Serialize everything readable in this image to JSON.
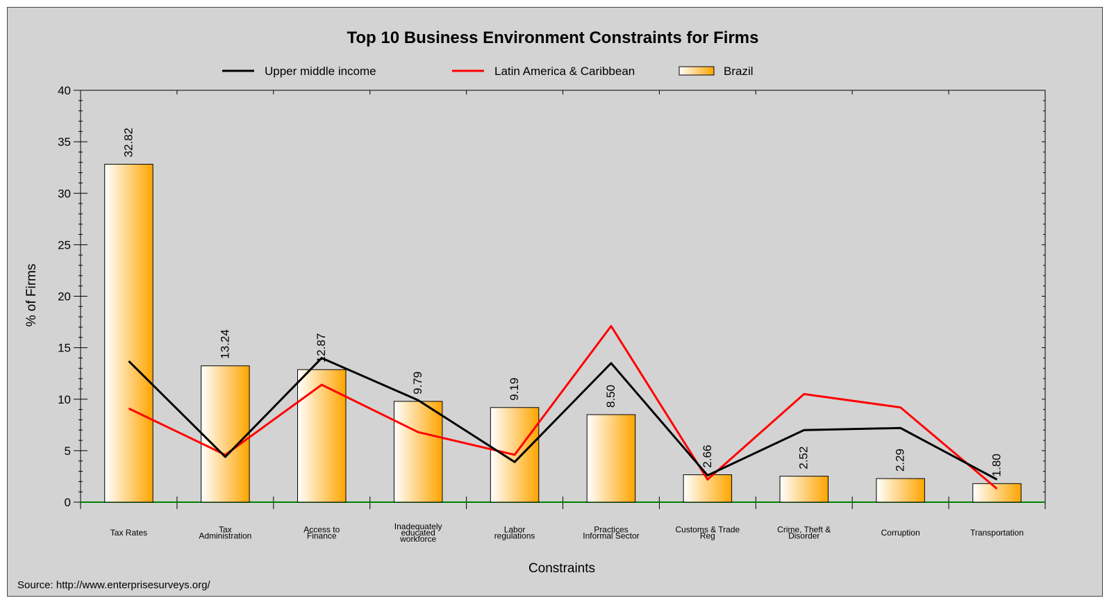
{
  "chart_data": {
    "type": "bar",
    "title": "Top 10 Business Environment Constraints for Firms",
    "xlabel": "Constraints",
    "ylabel": "% of Firms",
    "ylim": [
      0,
      40
    ],
    "yticks": [
      "0",
      "5",
      "10",
      "15",
      "20",
      "25",
      "30",
      "35",
      "40"
    ],
    "categories": [
      [
        "Tax Rates"
      ],
      [
        "Tax",
        "Administration"
      ],
      [
        "Access to",
        "Finance"
      ],
      [
        "Inadequately",
        "educated",
        "workforce"
      ],
      [
        "Labor",
        "regulations"
      ],
      [
        "Practices",
        "Informal Sector"
      ],
      [
        "Customs & Trade",
        "Reg"
      ],
      [
        "Crime, Theft &",
        "Disorder"
      ],
      [
        "Corruption"
      ],
      [
        "Transportation"
      ]
    ],
    "series": [
      {
        "name": "Brazil",
        "kind": "bar",
        "values": [
          32.82,
          13.24,
          12.87,
          9.79,
          9.19,
          8.5,
          2.66,
          2.52,
          2.29,
          1.8
        ],
        "labels": [
          "32.82",
          "13.24",
          "12.87",
          "9.79",
          "9.19",
          "8.50",
          "2.66",
          "2.52",
          "2.29",
          "1.80"
        ]
      },
      {
        "name": "Upper middle income",
        "kind": "line",
        "color": "#000000",
        "values": [
          13.7,
          4.4,
          14.0,
          9.9,
          3.9,
          13.5,
          2.6,
          7.0,
          7.2,
          2.2
        ]
      },
      {
        "name": "Latin America & Caribbean",
        "kind": "line",
        "color": "#ff0000",
        "values": [
          9.1,
          4.6,
          11.4,
          6.8,
          4.6,
          17.1,
          2.2,
          10.5,
          9.2,
          1.3
        ]
      }
    ],
    "bar_gradient": [
      "#ffffff",
      "#ffa500"
    ],
    "baseline_color": "#008000",
    "grid": false,
    "legend_position": "top"
  },
  "source": "Source: http://www.enterprisesurveys.org/"
}
